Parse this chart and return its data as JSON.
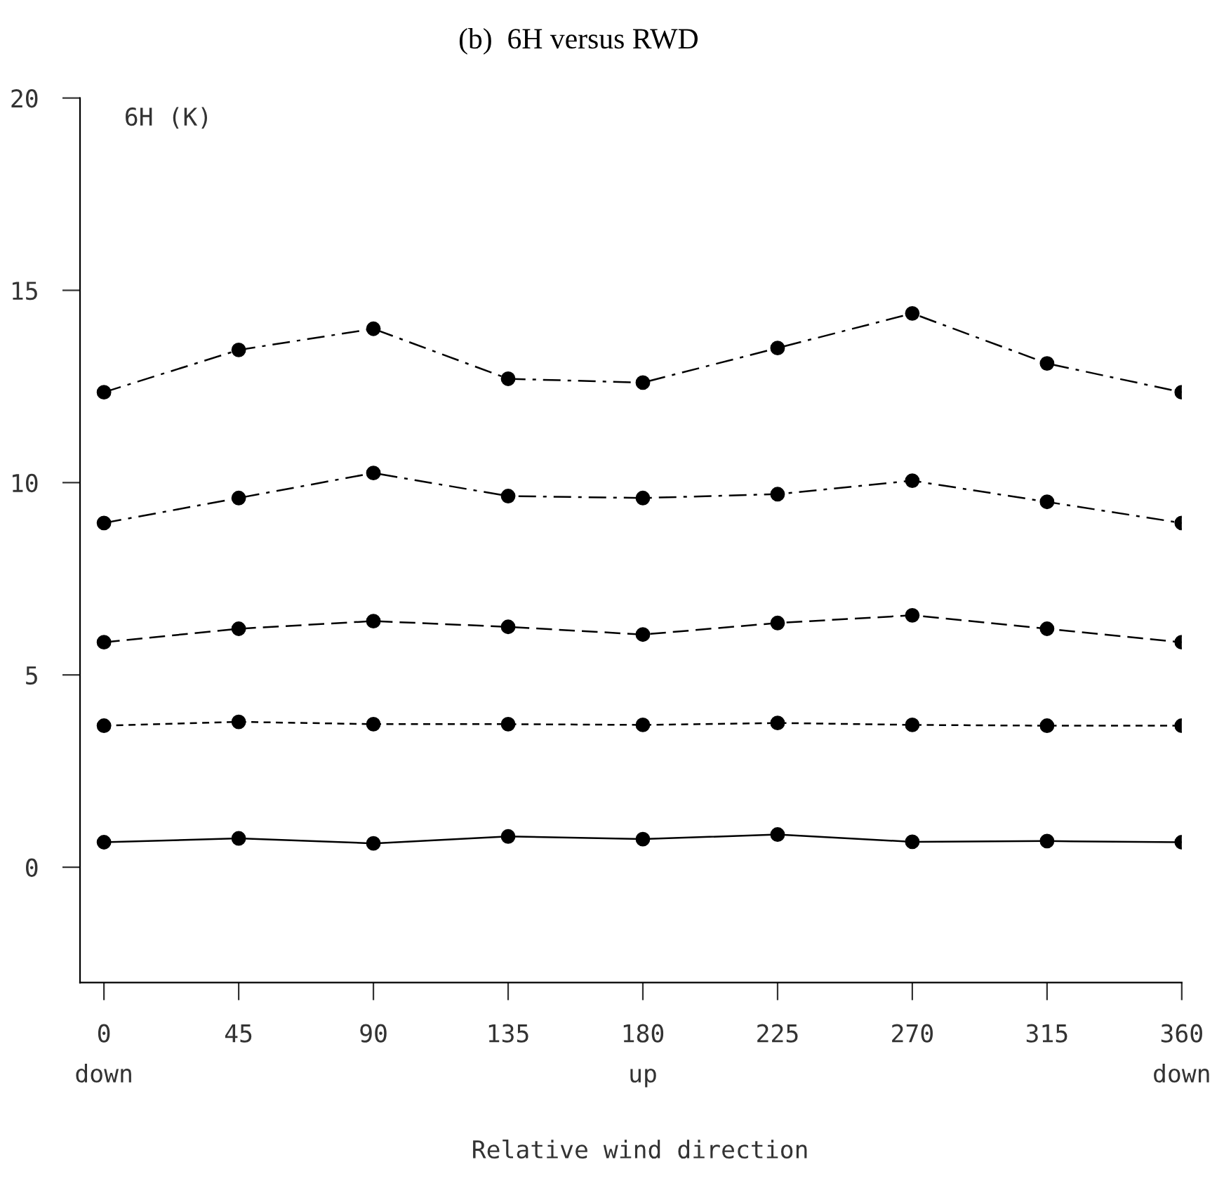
{
  "chart_data": {
    "type": "line",
    "title": "(b)  6H versus RWD",
    "ylabel": "6H (K)",
    "xlabel": "Relative wind direction",
    "x": [
      0,
      45,
      90,
      135,
      180,
      225,
      270,
      315,
      360
    ],
    "series": [
      {
        "color": "#000000",
        "line_style": "dashdot",
        "values": [
          12.35,
          13.45,
          14.0,
          12.7,
          12.6,
          13.5,
          14.4,
          13.1,
          12.35
        ]
      },
      {
        "color": "#000000",
        "line_style": "dashdot",
        "values": [
          8.95,
          9.6,
          10.25,
          9.65,
          9.6,
          9.7,
          10.05,
          9.5,
          8.95
        ]
      },
      {
        "color": "#000000",
        "line_style": "dashed",
        "values": [
          5.85,
          6.2,
          6.4,
          6.25,
          6.05,
          6.35,
          6.55,
          6.2,
          5.85
        ]
      },
      {
        "color": "#000000",
        "line_style": "dotted",
        "values": [
          3.68,
          3.78,
          3.72,
          3.72,
          3.7,
          3.75,
          3.7,
          3.68,
          3.68
        ]
      },
      {
        "color": "#000000",
        "line_style": "solid",
        "values": [
          0.65,
          0.75,
          0.62,
          0.8,
          0.73,
          0.85,
          0.66,
          0.68,
          0.65
        ]
      }
    ],
    "xlim": [
      -8,
      360
    ],
    "ylim": [
      -3,
      20
    ],
    "xticks": [
      0,
      45,
      90,
      135,
      180,
      225,
      270,
      315,
      360
    ],
    "yticks": [
      0,
      5,
      10,
      15,
      20
    ],
    "annotations": [
      "down",
      "up",
      "down"
    ],
    "marker": "circle",
    "grid": false,
    "legend": false
  }
}
